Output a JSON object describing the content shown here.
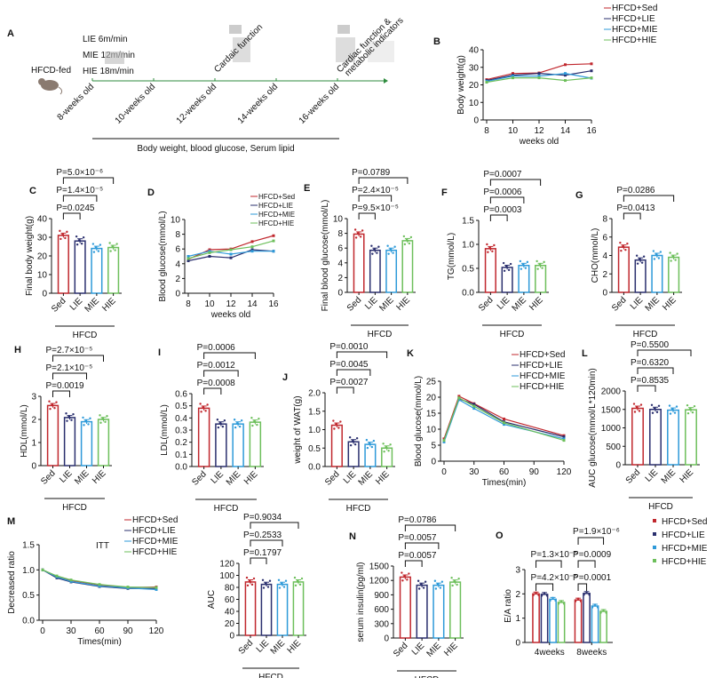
{
  "colors": {
    "Sed": "#c0272d",
    "LIE": "#2a2f6e",
    "MIE": "#2e9ad9",
    "HIE": "#6dbf5b"
  },
  "panel_a": {
    "label": "A",
    "diet": "HFCD-fed",
    "protocols": [
      "LIE  6m/min",
      "MIE  12m/min",
      "HIE  18m/min"
    ],
    "timepoints": [
      "8-weeks old",
      "10-weeks old",
      "12-weeks old",
      "14-weeks old",
      "16-weeks old"
    ],
    "event1": "Cardaic function",
    "event2a": "Cardiac function &",
    "event2b": "metabolic indicators",
    "measures": "Body weight, blood glucose, Serum lipid"
  },
  "chart_data": [
    {
      "id": "B",
      "label": "B",
      "type": "line",
      "ylabel": "Body weight(g)",
      "xlabel": "weeks old",
      "x": [
        8,
        10,
        12,
        14,
        16
      ],
      "xticks": [
        "8",
        "10",
        "12",
        "14",
        "16"
      ],
      "ylim": [
        0,
        40
      ],
      "yticks": [
        "0",
        "10",
        "20",
        "30",
        "40"
      ],
      "series": [
        {
          "name": "HFCD+Sed",
          "key": "Sed",
          "values": [
            23,
            26.5,
            26.8,
            31.5,
            32
          ]
        },
        {
          "name": "HFCD+LIE",
          "key": "LIE",
          "values": [
            22.5,
            25.5,
            26.5,
            25.5,
            28
          ]
        },
        {
          "name": "HFCD+MIE",
          "key": "MIE",
          "values": [
            22,
            25,
            25,
            26.5,
            23.8
          ]
        },
        {
          "name": "HFCD+HIE",
          "key": "HIE",
          "values": [
            21.5,
            24,
            24,
            22.5,
            24
          ]
        }
      ]
    },
    {
      "id": "C",
      "label": "C",
      "type": "bar",
      "ylabel": "Final body weight(g)",
      "group": "HFCD",
      "categories": [
        "Sed",
        "LIE",
        "MIE",
        "HIE"
      ],
      "values": [
        31,
        28,
        24,
        24.5
      ],
      "ylim": [
        0,
        40
      ],
      "yticks": [
        "0",
        "10",
        "20",
        "30",
        "40"
      ],
      "comparisons": [
        {
          "pair": [
            0,
            1
          ],
          "label": "P=0.0245"
        },
        {
          "pair": [
            0,
            2
          ],
          "label": "P=1.4×10⁻⁵"
        },
        {
          "pair": [
            0,
            3
          ],
          "label": "P=5.0×10⁻⁶"
        }
      ]
    },
    {
      "id": "D",
      "label": "D",
      "type": "line",
      "ylabel": "Blood glucose(mmol/L)",
      "xlabel": "weeks old",
      "x": [
        8,
        10,
        12,
        14,
        16
      ],
      "xticks": [
        "8",
        "10",
        "12",
        "14",
        "16"
      ],
      "ylim": [
        0,
        10
      ],
      "yticks": [
        "0",
        "2",
        "4",
        "6",
        "8",
        "10"
      ],
      "series": [
        {
          "name": "HFCD+Sed",
          "key": "Sed",
          "values": [
            4.6,
            5.9,
            6.0,
            7.0,
            7.8
          ]
        },
        {
          "name": "HFCD+LIE",
          "key": "LIE",
          "values": [
            4.4,
            5.0,
            4.8,
            5.9,
            5.7
          ]
        },
        {
          "name": "HFCD+MIE",
          "key": "MIE",
          "values": [
            5.0,
            5.7,
            5.3,
            5.7,
            5.7
          ]
        },
        {
          "name": "HFCD+HIE",
          "key": "HIE",
          "values": [
            4.7,
            5.5,
            5.9,
            6.3,
            7.1
          ]
        }
      ]
    },
    {
      "id": "E",
      "label": "E",
      "type": "bar",
      "ylabel": "Final blood glucose(mmol/L)",
      "group": "HFCD",
      "categories": [
        "Sed",
        "LIE",
        "MIE",
        "HIE"
      ],
      "values": [
        7.9,
        5.7,
        5.7,
        7.0
      ],
      "ylim": [
        0,
        10
      ],
      "yticks": [
        "0",
        "2",
        "4",
        "6",
        "8",
        "10"
      ],
      "comparisons": [
        {
          "pair": [
            0,
            1
          ],
          "label": "P=9.5×10⁻⁵"
        },
        {
          "pair": [
            0,
            2
          ],
          "label": "P=2.4×10⁻⁵"
        },
        {
          "pair": [
            0,
            3
          ],
          "label": "P=0.0789"
        }
      ]
    },
    {
      "id": "F",
      "label": "F",
      "type": "bar",
      "ylabel": "TG(mmol/L)",
      "group": "HFCD",
      "categories": [
        "Sed",
        "LIE",
        "MIE",
        "HIE"
      ],
      "values": [
        0.91,
        0.52,
        0.56,
        0.56
      ],
      "ylim": [
        0,
        1.5
      ],
      "yticks": [
        "0.0",
        "0.5",
        "1.0",
        "1.5"
      ],
      "comparisons": [
        {
          "pair": [
            0,
            1
          ],
          "label": "P=0.0003"
        },
        {
          "pair": [
            0,
            2
          ],
          "label": "P=0.0006"
        },
        {
          "pair": [
            0,
            3
          ],
          "label": "P=0.0007"
        }
      ]
    },
    {
      "id": "G",
      "label": "G",
      "type": "bar",
      "ylabel": "CHO(mmol/L)",
      "group": "HFCD",
      "categories": [
        "Sed",
        "LIE",
        "MIE",
        "HIE"
      ],
      "values": [
        4.9,
        3.5,
        4.0,
        3.8
      ],
      "ylim": [
        0,
        8
      ],
      "yticks": [
        "0",
        "2",
        "4",
        "6",
        "8"
      ],
      "comparisons": [
        {
          "pair": [
            0,
            1
          ],
          "label": "P=0.0413"
        },
        {
          "pair": [
            0,
            3
          ],
          "label": "P=0.0286"
        }
      ]
    },
    {
      "id": "H",
      "label": "H",
      "type": "bar",
      "ylabel": "HDL(mmol/L)",
      "group": "HFCD",
      "categories": [
        "Sed",
        "LIE",
        "MIE",
        "HIE"
      ],
      "values": [
        2.6,
        2.08,
        1.9,
        2.0
      ],
      "ylim": [
        0,
        3
      ],
      "yticks": [
        "0",
        "1",
        "2",
        "3"
      ],
      "comparisons": [
        {
          "pair": [
            0,
            1
          ],
          "label": "P=0.0019"
        },
        {
          "pair": [
            0,
            2
          ],
          "label": "P=2.1×10⁻⁵"
        },
        {
          "pair": [
            0,
            3
          ],
          "label": "P=2.7×10⁻⁵"
        }
      ]
    },
    {
      "id": "I",
      "label": "I",
      "type": "bar",
      "ylabel": "LDL(mmol/L)",
      "group": "HFCD",
      "categories": [
        "Sed",
        "LIE",
        "MIE",
        "HIE"
      ],
      "values": [
        0.48,
        0.35,
        0.35,
        0.365
      ],
      "ylim": [
        0,
        0.6
      ],
      "yticks": [
        "0.0",
        "0.1",
        "0.2",
        "0.3",
        "0.4",
        "0.5",
        "0.6"
      ],
      "comparisons": [
        {
          "pair": [
            0,
            1
          ],
          "label": "P=0.0008"
        },
        {
          "pair": [
            0,
            2
          ],
          "label": "P=0.0012"
        },
        {
          "pair": [
            0,
            3
          ],
          "label": "P=0.0006"
        }
      ]
    },
    {
      "id": "J",
      "label": "J",
      "type": "bar",
      "ylabel": "weight of WAT(g)",
      "group": "HFCD",
      "categories": [
        "Sed",
        "LIE",
        "MIE",
        "HIE"
      ],
      "values": [
        1.12,
        0.67,
        0.6,
        0.5
      ],
      "ylim": [
        0,
        2
      ],
      "yticks": [
        "0.0",
        "0.5",
        "1.0",
        "1.5",
        "2.0"
      ],
      "comparisons": [
        {
          "pair": [
            0,
            1
          ],
          "label": "P=0.0027"
        },
        {
          "pair": [
            0,
            2
          ],
          "label": "P=0.0045"
        },
        {
          "pair": [
            0,
            3
          ],
          "label": "P=0.0010"
        }
      ]
    },
    {
      "id": "K",
      "label": "K",
      "type": "line",
      "ylabel": "Blood glucose(mmol/L)",
      "xlabel": "Times(min)",
      "x": [
        0,
        15,
        30,
        60,
        120
      ],
      "xlim": [
        0,
        120
      ],
      "xticks": [
        "0",
        "30",
        "60",
        "90",
        "120"
      ],
      "ylim": [
        0,
        25
      ],
      "yticks": [
        "0",
        "5",
        "10",
        "15",
        "20",
        "25"
      ],
      "series": [
        {
          "name": "HFCD+Sed",
          "key": "Sed",
          "values": [
            7.0,
            20.3,
            18.0,
            13.2,
            8.0
          ]
        },
        {
          "name": "HFCD+LIE",
          "key": "LIE",
          "values": [
            6.5,
            19.5,
            17.8,
            12.3,
            7.6
          ]
        },
        {
          "name": "HFCD+MIE",
          "key": "MIE",
          "values": [
            6.0,
            19.2,
            16.5,
            11.5,
            7.0
          ]
        },
        {
          "name": "HFCD+HIE",
          "key": "HIE",
          "values": [
            6.5,
            19.8,
            17.2,
            12.0,
            6.5
          ]
        }
      ]
    },
    {
      "id": "L",
      "label": "L",
      "type": "bar",
      "ylabel": "AUC glucose(mmol/L*120min)",
      "group": "HFCD",
      "categories": [
        "Sed",
        "LIE",
        "MIE",
        "HIE"
      ],
      "values": [
        1530,
        1500,
        1480,
        1490
      ],
      "ylim": [
        0,
        2000
      ],
      "yticks": [
        "0",
        "500",
        "1000",
        "1500",
        "2000"
      ],
      "comparisons": [
        {
          "pair": [
            0,
            1
          ],
          "label": "P=0.8535"
        },
        {
          "pair": [
            0,
            2
          ],
          "label": "P=0.6320"
        },
        {
          "pair": [
            0,
            3
          ],
          "label": "P=0.5500"
        }
      ]
    },
    {
      "id": "M",
      "label": "M",
      "type": "line",
      "ylabel": "Decreased ratio",
      "xlabel": "Times(min)",
      "note": "ITT",
      "x": [
        0,
        15,
        30,
        60,
        90,
        120
      ],
      "xlim": [
        0,
        120
      ],
      "xticks": [
        "0",
        "30",
        "60",
        "90",
        "120"
      ],
      "ylim": [
        0,
        1.5
      ],
      "yticks": [
        "0.0",
        "0.5",
        "1.0",
        "1.5"
      ],
      "series": [
        {
          "name": "HFCD+Sed",
          "key": "Sed",
          "values": [
            1,
            0.87,
            0.79,
            0.7,
            0.65,
            0.66
          ]
        },
        {
          "name": "HFCD+LIE",
          "key": "LIE",
          "values": [
            1,
            0.84,
            0.76,
            0.67,
            0.63,
            0.63
          ]
        },
        {
          "name": "HFCD+MIE",
          "key": "MIE",
          "values": [
            1,
            0.86,
            0.77,
            0.68,
            0.64,
            0.61
          ]
        },
        {
          "name": "HFCD+HIE",
          "key": "HIE",
          "values": [
            1,
            0.88,
            0.8,
            0.71,
            0.66,
            0.65
          ]
        }
      ]
    },
    {
      "id": "MA",
      "label": "",
      "type": "bar",
      "ylabel": "AUC",
      "group": "HFCD",
      "categories": [
        "Sed",
        "LIE",
        "MIE",
        "HIE"
      ],
      "values": [
        89,
        85,
        85,
        89
      ],
      "ylim": [
        0,
        120
      ],
      "yticks": [
        "0",
        "20",
        "40",
        "60",
        "80",
        "100",
        "120"
      ],
      "comparisons": [
        {
          "pair": [
            0,
            1
          ],
          "label": "P=0.1797"
        },
        {
          "pair": [
            0,
            2
          ],
          "label": "P=0.2533"
        },
        {
          "pair": [
            0,
            3
          ],
          "label": "P=0.9034"
        }
      ]
    },
    {
      "id": "N",
      "label": "N",
      "type": "bar",
      "ylabel": "serum insulin(pg/ml)",
      "group": "HFCD",
      "categories": [
        "Sed",
        "LIE",
        "MIE",
        "HIE"
      ],
      "values": [
        1270,
        1100,
        1100,
        1165
      ],
      "ylim": [
        0,
        1500
      ],
      "yticks": [
        "0",
        "300",
        "600",
        "900",
        "1200",
        "1500"
      ],
      "comparisons": [
        {
          "pair": [
            0,
            1
          ],
          "label": "P=0.0057"
        },
        {
          "pair": [
            0,
            2
          ],
          "label": "P=0.0057"
        },
        {
          "pair": [
            0,
            3
          ],
          "label": "P=0.0786"
        }
      ]
    },
    {
      "id": "O",
      "label": "O",
      "type": "grouped-bar",
      "ylabel": "E/A ratio",
      "categories": [
        "4weeks",
        "8weeks"
      ],
      "ylim": [
        0,
        3
      ],
      "yticks": [
        "0",
        "1",
        "2",
        "3"
      ],
      "series": [
        {
          "name": "HFCD+Sed",
          "key": "Sed",
          "values": [
            2.0,
            1.75
          ]
        },
        {
          "name": "HFCD+LIE",
          "key": "LIE",
          "values": [
            1.98,
            2.02
          ]
        },
        {
          "name": "HFCD+MIE",
          "key": "MIE",
          "values": [
            1.78,
            1.5
          ]
        },
        {
          "name": "HFCD+HIE",
          "key": "HIE",
          "values": [
            1.65,
            1.28
          ]
        }
      ],
      "comparisons": [
        {
          "group": 0,
          "pair": [
            0,
            2
          ],
          "label": "P=4.2×10⁻⁵"
        },
        {
          "group": 0,
          "pair": [
            0,
            3
          ],
          "label": "P=1.3×10⁻⁵"
        },
        {
          "group": 1,
          "pair": [
            0,
            1
          ],
          "label": "P=0.0001"
        },
        {
          "group": 1,
          "pair": [
            0,
            2
          ],
          "label": "P=0.0009"
        },
        {
          "group": 1,
          "pair": [
            0,
            3
          ],
          "label": "P=1.9×10⁻⁶"
        }
      ]
    }
  ]
}
